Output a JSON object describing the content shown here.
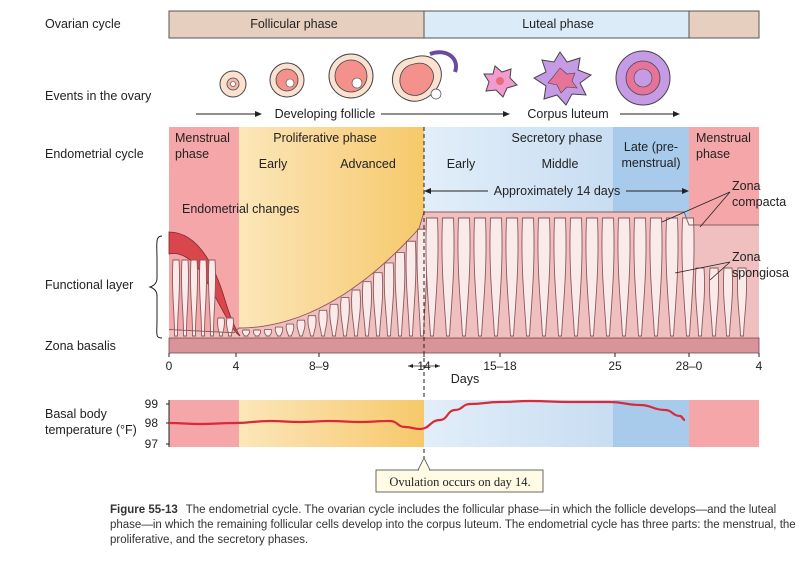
{
  "rows": {
    "ovarian_cycle": "Ovarian cycle",
    "events_in_ovary": "Events in the ovary",
    "endometrial_cycle": "Endometrial cycle",
    "functional_layer": "Functional layer",
    "zona_basalis": "Zona basalis",
    "basal_body_temperature": [
      "Basal body",
      "temperature (°F)"
    ]
  },
  "ovarian_phases": {
    "follicular": "Follicular phase",
    "luteal": "Luteal phase"
  },
  "ovary_events": {
    "developing_follicle": "Developing follicle",
    "corpus_luteum": "Corpus luteum"
  },
  "endometrial_phases": {
    "menstrual_start": [
      "Menstrual",
      "phase"
    ],
    "proliferative": "Proliferative phase",
    "early_prolif": "Early",
    "advanced": "Advanced",
    "early_secretory": "Early",
    "secretory": "Secretory phase",
    "middle": "Middle",
    "late": [
      "Late (pre-",
      "menstrual)"
    ],
    "menstrual_end": [
      "Menstrual",
      "phase"
    ]
  },
  "annotations": {
    "endometrial_changes": "Endometrial changes",
    "approx_14_days": "Approximately 14 days",
    "zona_compacta": [
      "Zona",
      "compacta"
    ],
    "zona_spongiosa": [
      "Zona",
      "spongiosa"
    ],
    "ovulation": "Ovulation occurs on day 14."
  },
  "axis": {
    "days_label": "Days",
    "ticks": [
      "0",
      "4",
      "8–9",
      "14",
      "15–18",
      "25",
      "28–0",
      "4"
    ]
  },
  "temperature": {
    "ticks": [
      "99",
      "98",
      "97"
    ],
    "ylim": [
      97,
      99
    ]
  },
  "colors": {
    "menstrual": "#f4a4a8",
    "early_prolif": "#fbe3a8",
    "advanced_prolif": "#f8d27e",
    "secretory": "#cfe2f5",
    "late": "#a8c9ea",
    "tissue": "#f0c0c0",
    "basalis": "#d89498",
    "tan_bar": "#e7cfbf",
    "blue_bar": "#dcebf8",
    "temp_line": "#d92a3a"
  },
  "caption": {
    "figure_number": "Figure 55-13",
    "text": "The endometrial cycle. The ovarian cycle includes the follicular phase—in which the follicle develops—and the luteal phase—in which the remaining follicular cells develop into the corpus luteum. The endometrial cycle has three parts: the menstrual, the proliferative, and the secretory phases."
  }
}
